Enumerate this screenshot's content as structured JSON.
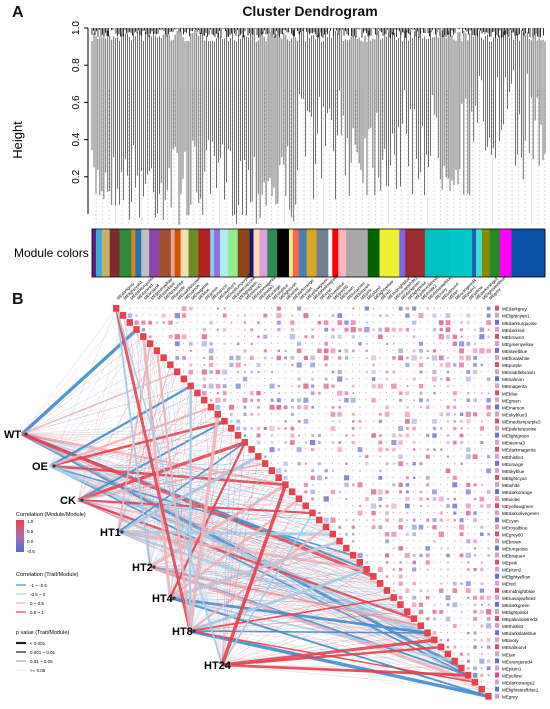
{
  "panelA": {
    "label": "A",
    "title": "Cluster Dendrogram",
    "ylabel": "Height",
    "module_colors_label": "Module colors",
    "yticks": [
      "0.2",
      "0.4",
      "0.6",
      "0.8",
      "1.0"
    ]
  },
  "panelB": {
    "label": "B",
    "traits": [
      "WT",
      "OE",
      "CK",
      "HT1",
      "HT2",
      "HT4",
      "HT8",
      "HT24"
    ],
    "modules": [
      "MEdarkgrey",
      "MElightcyan1",
      "MEdarkturquoise",
      "MEdarkred",
      "MEbrown4",
      "MEgreenyellow",
      "MEsteelblue",
      "MEfloralwhite",
      "MEpurple",
      "MEsaddlebrown",
      "MEsalmon",
      "MEmagenta",
      "MEblue",
      "MEgreen",
      "MEmaroon",
      "MEskyblue3",
      "MEmediumpurple3",
      "MEpaleturquoise",
      "MElightgreen",
      "MEsienna3",
      "MEdarkmagenta",
      "MEthistle1",
      "MEorange",
      "MEskyblue",
      "MElightcyan",
      "MEwhite",
      "MEdarkorange",
      "MEviolet",
      "MEyellowgreen",
      "MEdarkolivegreen",
      "MEcyan",
      "MEroyalblue",
      "MEgrey60",
      "MEbrown",
      "MEturquoise",
      "MEbisque4",
      "MEpink",
      "MEplum2",
      "MElightyellow",
      "MEred",
      "MEmidnightblue",
      "MEnavajowhite2",
      "MEdarkgreen",
      "MElightpink4",
      "MEpalevioletred3",
      "MEthistle2",
      "MEdarkslateblue",
      "MEivory",
      "MEsalmon4",
      "MEtan",
      "MEorangered4",
      "MEplum1",
      "MEyellow",
      "MEdarkorange2",
      "MElightsteelblue1",
      "MEgrey"
    ],
    "legend": {
      "corr_mm_title": "Correlation (Module/Module)",
      "corr_mm_ticks": [
        "1.0",
        "0.5",
        "0.0",
        "-0.5"
      ],
      "corr_tm_title": "Correlation (Trait/Module)",
      "corr_tm_items": [
        "-1 ~ -0.5",
        "-0.5 ~ 0",
        "0 ~ 0.5",
        "0.5 ~ 1"
      ],
      "corr_tm_colors": [
        "#3b8fd0",
        "#a8d4ee",
        "#f4b3b8",
        "#e8404c"
      ],
      "pval_title": "p value (Trait/Module)",
      "pval_items": [
        "< 0.001",
        "0.001 ~ 0.01",
        "0.01 ~ 0.05",
        ">= 0.05"
      ]
    }
  },
  "colors": {
    "module_bar": [
      "#5a1e82",
      "#3da9d6",
      "#c8b06a",
      "#7e2b2b",
      "#2f8a3b",
      "#e67e22",
      "#1f77b4",
      "#c0c0c0",
      "#8e44ad",
      "#a0522d",
      "#e8a2a2",
      "#d35400",
      "#f5deb3",
      "#6b8e23",
      "#b22222",
      "#87ceeb",
      "#9370db",
      "#afeeee",
      "#90ee90",
      "#8b4513",
      "#191970",
      "#ffdab9",
      "#dda0dd",
      "#2e8b57",
      "#000000",
      "#f0e68c",
      "#ff6347",
      "#4682b4",
      "#daa520",
      "#708090",
      "#ffffff",
      "#ff0000",
      "#ffb6c1",
      "#a9a9a9",
      "#006400",
      "#f0f030",
      "#7b68ee",
      "#9b2d30",
      "#00c0c0",
      "#00c8c8",
      "#1a5fb4",
      "#40e0d0",
      "#8b8b00",
      "#228b22",
      "#ff00ff",
      "#0055aa",
      "#0a4fa8"
    ],
    "accent_red": "#e8404c",
    "accent_blue": "#3b8fd0"
  }
}
